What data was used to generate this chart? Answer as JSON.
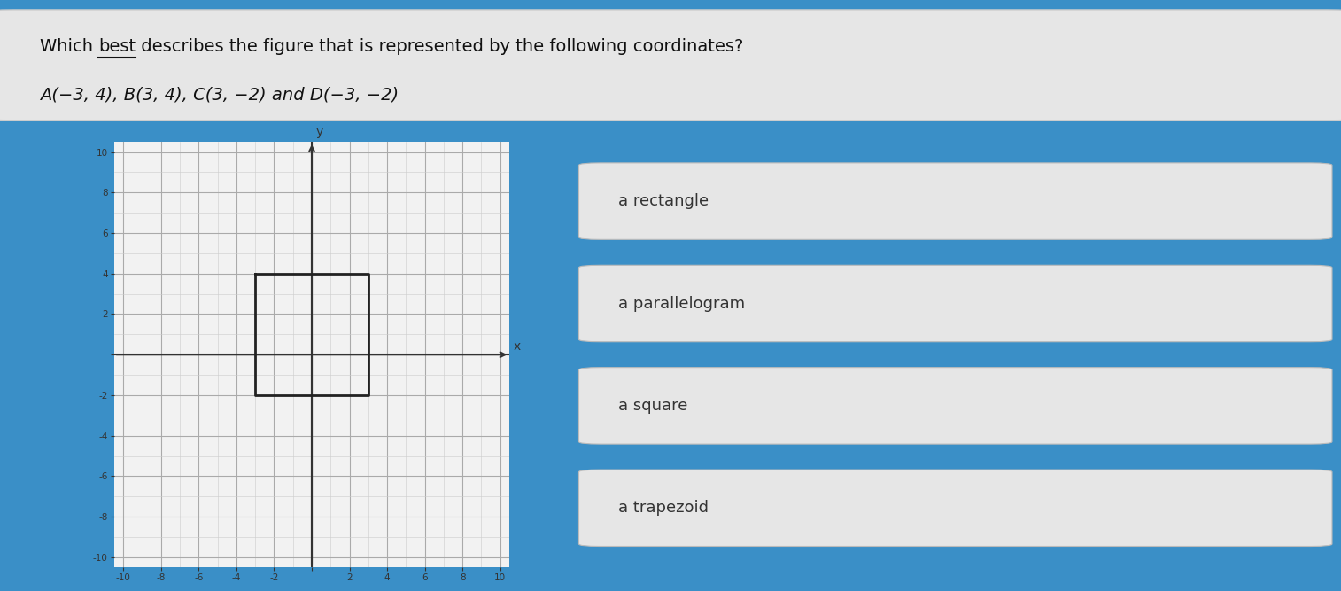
{
  "bg_color": "#3a8fc7",
  "header_bg": "#e6e6e6",
  "header_line1_pre": "Which ",
  "header_underline_word": "best",
  "header_line1_post": " describes the figure that is represented by the following coordinates?",
  "header_line2": "A(−3, 4), B(3, 4), C(3, −2) and D(−3, −2)",
  "graph_xlim": [
    -10.5,
    10.5
  ],
  "graph_ylim": [
    -10.5,
    10.5
  ],
  "graph_xticks": [
    -10,
    -8,
    -6,
    -4,
    -2,
    0,
    2,
    4,
    6,
    8,
    10
  ],
  "graph_yticks": [
    -10,
    -8,
    -6,
    -4,
    -2,
    0,
    2,
    4,
    6,
    8,
    10
  ],
  "rect_vertices_x": [
    -3,
    3,
    3,
    -3,
    -3
  ],
  "rect_vertices_y": [
    4,
    4,
    -2,
    -2,
    4
  ],
  "rect_color": "#222222",
  "answer_options": [
    "a rectangle",
    "a parallelogram",
    "a square",
    "a trapezoid"
  ],
  "answer_box_color": "#e6e6e6",
  "answer_text_color": "#333333",
  "grid_color": "#aaaaaa",
  "grid_minor_color": "#cccccc",
  "axis_color": "#333333",
  "graph_bg": "#f2f2f2",
  "graph_border_color": "#999999"
}
